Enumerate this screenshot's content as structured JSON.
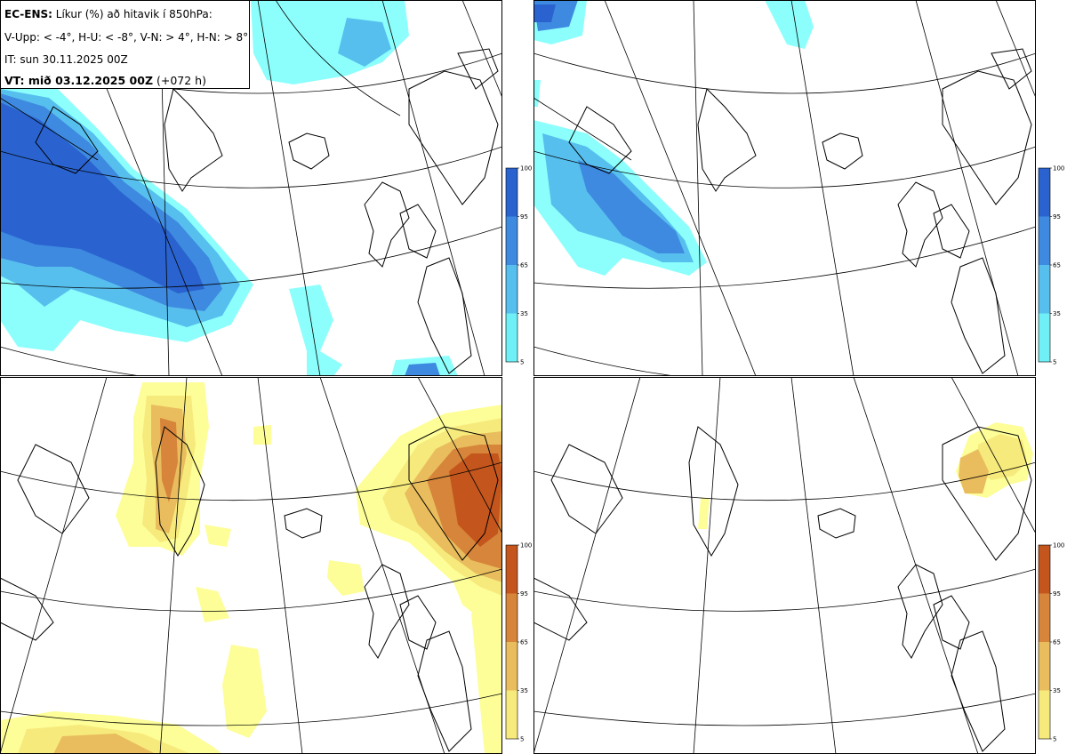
{
  "header": {
    "model": "EC-ENS:",
    "title": "Líkur (%) að hitavik í 850hPa:",
    "thresholds": "V-Upp: < -4°, H-U: < -8°, V-N: > 4°, H-N: > 8°",
    "init_time": "IT: sun 30.11.2025 00Z",
    "valid_label": "VT: mið 03.12.2025 00Z",
    "lead": "(+072 h)"
  },
  "panels": [
    {
      "id": "V-Upp",
      "description": "Probability anomaly < -4°",
      "colormap": "blue"
    },
    {
      "id": "H-U",
      "description": "Probability anomaly < -8°",
      "colormap": "blue"
    },
    {
      "id": "V-N",
      "description": "Probability anomaly > 4°",
      "colormap": "orange"
    },
    {
      "id": "H-N",
      "description": "Probability anomaly > 8°",
      "colormap": "orange"
    }
  ],
  "colorbar": {
    "ticks": [
      "100",
      "95",
      "65",
      "35",
      "5"
    ],
    "blue_colors": [
      "#2a63cf",
      "#3e8ae0",
      "#57bfee",
      "#6ef0f6",
      "#8cfffc"
    ],
    "orange_colors": [
      "#c4561d",
      "#d6853a",
      "#e9bd5d",
      "#f7ea7c",
      "#fdfe98"
    ]
  }
}
